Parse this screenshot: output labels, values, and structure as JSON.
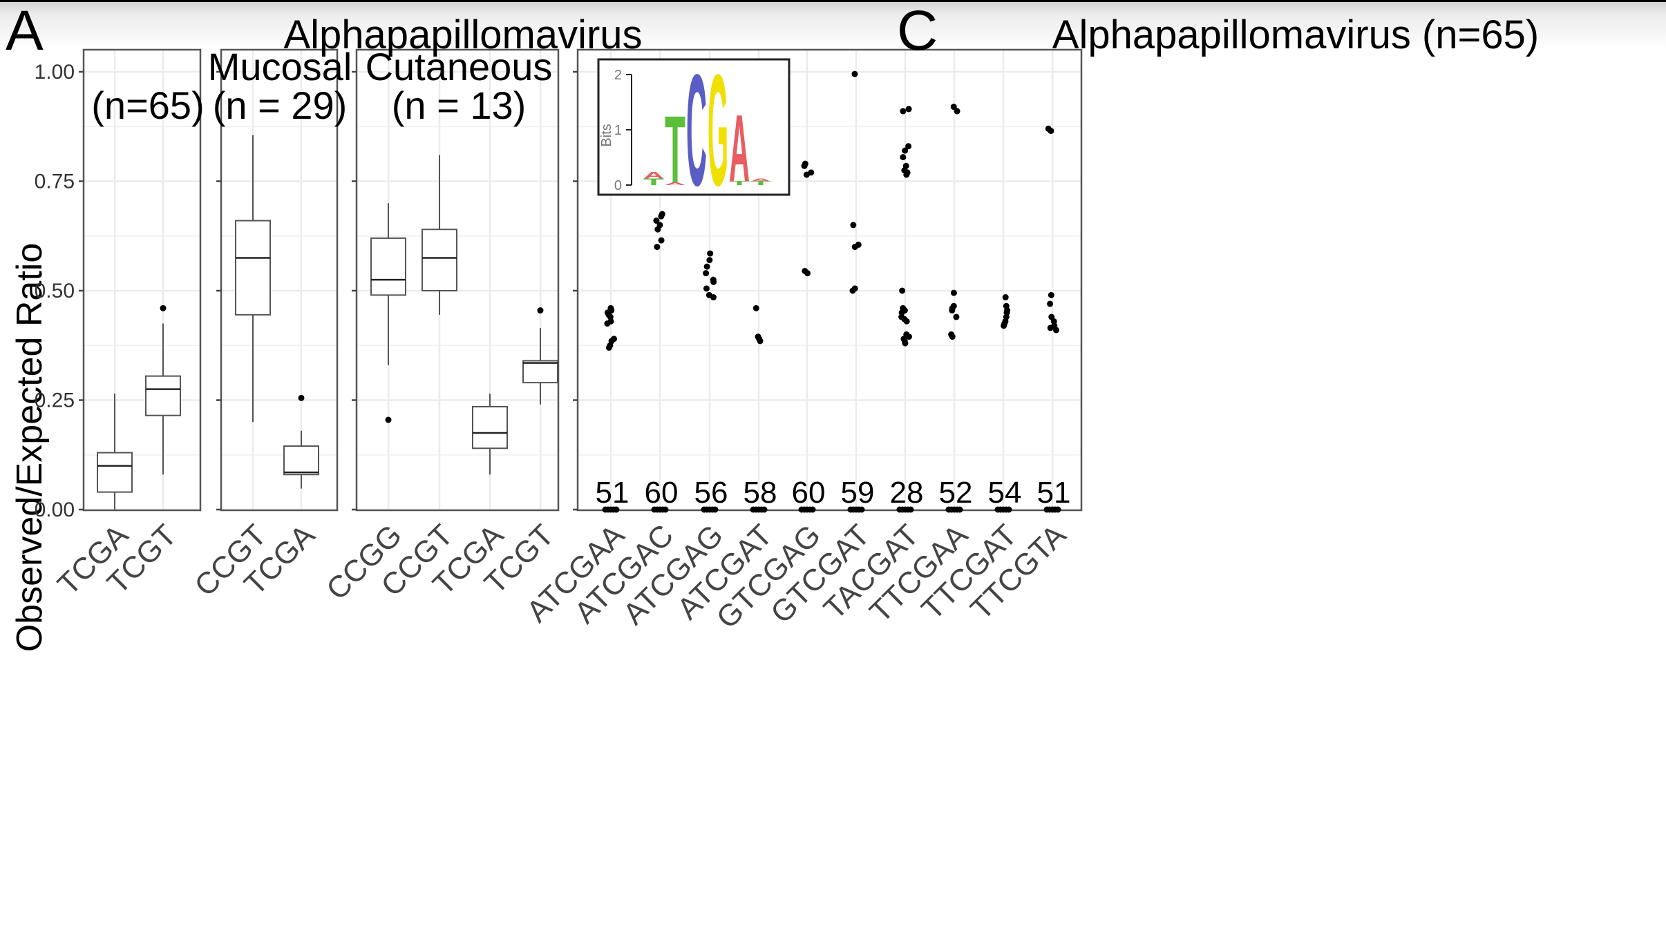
{
  "panel_labels": {
    "left": "A",
    "right": "C"
  },
  "titles": {
    "left": "Alphapapillomavirus",
    "right": "Alphapapillomavirus (n=65)"
  },
  "y_axis_label": "Observed/Expected Ratio",
  "colors": {
    "dot": "#000000",
    "box": "#555555",
    "grid": "#ebebeb",
    "logo_T": "#5bbf3a",
    "logo_C": "#5a5ec4",
    "logo_G": "#f0e000",
    "logo_A": "#e85c62"
  },
  "chart_data": [
    {
      "type": "box",
      "panel": "A",
      "facet_labels": [
        "(n=65)"
      ],
      "categories": [
        "TCGA",
        "TCGT"
      ],
      "ylim": [
        0,
        1.05
      ],
      "y_ticks": [
        "0.00",
        "0.25",
        "0.50",
        "0.75",
        "1.00"
      ],
      "grid": true,
      "boxes": [
        {
          "category": "TCGA",
          "min": 0.0,
          "q1": 0.04,
          "median": 0.1,
          "q3": 0.13,
          "max": 0.265,
          "outliers": []
        },
        {
          "category": "TCGT",
          "min": 0.08,
          "q1": 0.215,
          "median": 0.275,
          "q3": 0.305,
          "max": 0.425,
          "outliers": [
            0.46
          ]
        }
      ]
    },
    {
      "type": "box",
      "panel": "A",
      "facet_labels": [
        "Mucosal",
        "(n = 29)"
      ],
      "categories": [
        "CCGT",
        "TCGA"
      ],
      "ylim": [
        0,
        1.05
      ],
      "grid": true,
      "boxes": [
        {
          "category": "CCGT",
          "min": 0.2,
          "q1": 0.445,
          "median": 0.575,
          "q3": 0.66,
          "max": 0.855,
          "outliers": []
        },
        {
          "category": "TCGA",
          "min": 0.048,
          "q1": 0.08,
          "median": 0.085,
          "q3": 0.145,
          "max": 0.18,
          "outliers": [
            0.255
          ]
        }
      ]
    },
    {
      "type": "box",
      "panel": "A",
      "facet_labels": [
        "Cutaneous",
        "(n = 13)"
      ],
      "categories": [
        "CCGG",
        "CCGT",
        "TCGA",
        "TCGT"
      ],
      "ylim": [
        0,
        1.05
      ],
      "grid": true,
      "boxes": [
        {
          "category": "CCGG",
          "min": 0.33,
          "q1": 0.49,
          "median": 0.525,
          "q3": 0.62,
          "max": 0.7,
          "outliers": [
            0.205
          ]
        },
        {
          "category": "CCGT",
          "min": 0.445,
          "q1": 0.5,
          "median": 0.575,
          "q3": 0.64,
          "max": 0.81,
          "outliers": []
        },
        {
          "category": "TCGA",
          "min": 0.08,
          "q1": 0.14,
          "median": 0.175,
          "q3": 0.235,
          "max": 0.265,
          "outliers": []
        },
        {
          "category": "TCGT",
          "min": 0.24,
          "q1": 0.29,
          "median": 0.335,
          "q3": 0.34,
          "max": 0.415,
          "outliers": [
            0.455
          ]
        }
      ]
    },
    {
      "type": "scatter",
      "panel": "C",
      "categories": [
        "ATCGAA",
        "ATCGAC",
        "ATCGAG",
        "ATCGAT",
        "GTCGAG",
        "GTCGAT",
        "TACGAT",
        "TTCGAA",
        "TTCGAT",
        "TTCGTA"
      ],
      "counts": [
        "51",
        "60",
        "56",
        "58",
        "60",
        "59",
        "28",
        "52",
        "54",
        "51"
      ],
      "ylim": [
        0,
        1.05
      ],
      "grid": true,
      "points": [
        [
          0.46,
          0.455,
          0.45,
          0.445,
          0.44,
          0.43,
          0.425,
          0.39,
          0.385,
          0.375,
          0.37
        ],
        [
          0.675,
          0.67,
          0.66,
          0.65,
          0.64,
          0.615,
          0.6
        ],
        [
          0.585,
          0.57,
          0.555,
          0.54,
          0.525,
          0.52,
          0.505,
          0.49,
          0.485
        ],
        [
          0.46,
          0.395,
          0.39,
          0.385
        ],
        [
          0.79,
          0.785,
          0.77,
          0.765,
          0.545,
          0.54
        ],
        [
          0.995,
          0.65,
          0.605,
          0.6,
          0.505,
          0.5
        ],
        [
          0.915,
          0.91,
          0.83,
          0.82,
          0.805,
          0.785,
          0.775,
          0.77,
          0.765,
          0.5,
          0.46,
          0.455,
          0.45,
          0.44,
          0.435,
          0.43,
          0.4,
          0.395,
          0.39,
          0.385,
          0.38
        ],
        [
          0.92,
          0.91,
          0.495,
          0.465,
          0.46,
          0.455,
          0.44,
          0.4,
          0.395
        ],
        [
          0.485,
          0.465,
          0.455,
          0.45,
          0.44,
          0.43,
          0.425,
          0.42
        ],
        [
          0.87,
          0.865,
          0.49,
          0.47,
          0.44,
          0.43,
          0.42,
          0.415,
          0.41
        ]
      ],
      "inset_logo": {
        "ylabel": "Bits",
        "y_ticks": [
          "0",
          "1",
          "2"
        ],
        "letters": [
          {
            "pos": 1,
            "stack": [
              {
                "letter": "T",
                "bits": 0.12
              },
              {
                "letter": "A",
                "bits": 0.12
              }
            ]
          },
          {
            "pos": 2,
            "stack": [
              {
                "letter": "A",
                "bits": 0.05
              },
              {
                "letter": "T",
                "bits": 1.2
              }
            ]
          },
          {
            "pos": 3,
            "stack": [
              {
                "letter": "C",
                "bits": 2.0
              }
            ]
          },
          {
            "pos": 4,
            "stack": [
              {
                "letter": "G",
                "bits": 2.0
              }
            ]
          },
          {
            "pos": 5,
            "stack": [
              {
                "letter": "T",
                "bits": 0.07
              },
              {
                "letter": "A",
                "bits": 1.2
              }
            ]
          },
          {
            "pos": 6,
            "stack": [
              {
                "letter": "T",
                "bits": 0.07
              },
              {
                "letter": "A",
                "bits": 0.05
              }
            ]
          }
        ]
      }
    }
  ]
}
